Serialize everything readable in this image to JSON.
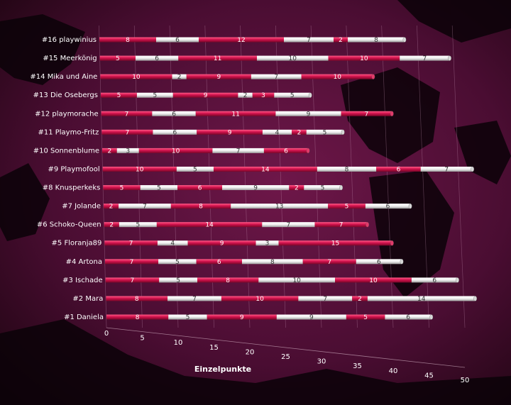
{
  "chart_data": {
    "type": "bar",
    "orientation": "horizontal-stacked-3d",
    "title": "",
    "xlabel": "Einzelpunkte",
    "ylabel": "",
    "xlim": [
      0,
      50
    ],
    "ticks": [
      0,
      5,
      10,
      15,
      20,
      25,
      30,
      35,
      40,
      45,
      50
    ],
    "grid": true,
    "legend": "none",
    "colors": {
      "red": "#c8104a",
      "white": "#f2f2f2",
      "background": "#3a0a26"
    },
    "categories": [
      "#16 playwinius",
      "#15 Meerkönig",
      "#14 Mika und Aine",
      "#13 Die Osebergs",
      "#12 playmorache",
      "#11 Playmo-Fritz",
      "#10 Sonnenblume",
      "#9 Playmofool",
      "#8 Knusperkeks",
      "#7 Jolande",
      "#6 Schoko-Queen",
      "#5 Floranja89",
      "#4 Artona",
      "#3 Ischade",
      "#2 Mara",
      "#1 Daniela"
    ],
    "rows": [
      [
        8,
        6,
        12,
        7,
        2,
        8
      ],
      [
        5,
        6,
        11,
        10,
        10,
        7
      ],
      [
        10,
        2,
        9,
        7,
        10
      ],
      [
        5,
        5,
        9,
        2,
        3,
        5
      ],
      [
        7,
        6,
        11,
        9,
        7
      ],
      [
        7,
        6,
        9,
        4,
        2,
        5
      ],
      [
        2,
        3,
        10,
        7,
        6
      ],
      [
        10,
        5,
        14,
        8,
        6,
        7
      ],
      [
        5,
        5,
        6,
        9,
        2,
        5
      ],
      [
        2,
        7,
        8,
        13,
        5,
        6
      ],
      [
        2,
        5,
        14,
        7,
        7
      ],
      [
        7,
        4,
        9,
        3,
        15
      ],
      [
        7,
        5,
        6,
        8,
        7,
        6
      ],
      [
        7,
        5,
        8,
        10,
        10,
        6
      ],
      [
        8,
        7,
        10,
        7,
        2,
        14
      ],
      [
        8,
        5,
        9,
        9,
        5,
        6
      ]
    ]
  }
}
